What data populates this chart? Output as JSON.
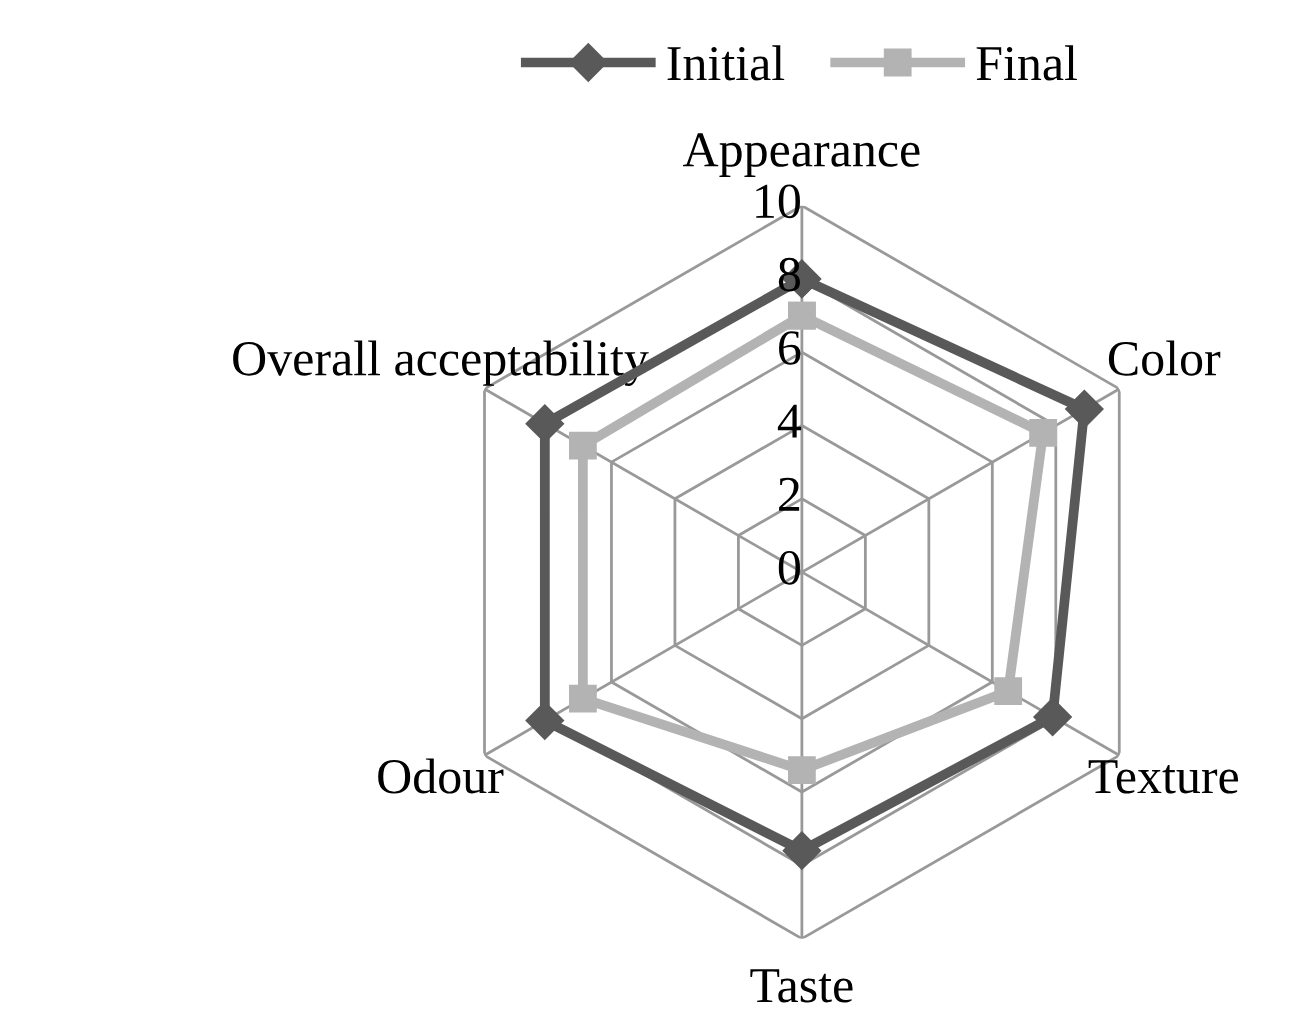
{
  "chart_data": {
    "type": "radar",
    "categories": [
      "Appearance",
      "Color",
      "Texture",
      "Taste",
      "Odour",
      "Overall acceptability"
    ],
    "series": [
      {
        "name": "Initial",
        "color": "#595959",
        "marker": "diamond",
        "values": [
          8.0,
          8.9,
          7.9,
          7.6,
          8.1,
          8.1
        ]
      },
      {
        "name": "Final",
        "color": "#b3b3b3",
        "marker": "square",
        "values": [
          7.0,
          7.6,
          6.5,
          5.4,
          6.9,
          6.9
        ]
      }
    ],
    "ylim": [
      0,
      10
    ],
    "yticks": [
      0,
      2,
      4,
      6,
      8,
      10
    ],
    "grid": true,
    "legend": "top"
  }
}
